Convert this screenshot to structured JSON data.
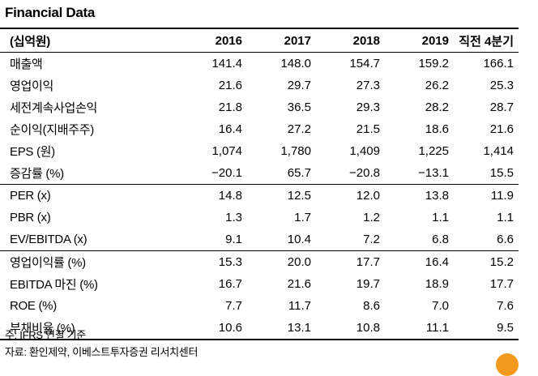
{
  "title": "Financial Data",
  "table": {
    "unit_label": "(십억원)",
    "columns": [
      "2016",
      "2017",
      "2018",
      "2019",
      "직전 4분기"
    ],
    "rows": [
      {
        "label": "매출액",
        "values": [
          "141.4",
          "148.0",
          "154.7",
          "159.2",
          "166.1"
        ]
      },
      {
        "label": "영업이익",
        "values": [
          "21.6",
          "29.7",
          "27.3",
          "26.2",
          "25.3"
        ]
      },
      {
        "label": "세전계속사업손익",
        "values": [
          "21.8",
          "36.5",
          "29.3",
          "28.2",
          "28.7"
        ]
      },
      {
        "label": "순이익(지배주주)",
        "values": [
          "16.4",
          "27.2",
          "21.5",
          "18.6",
          "21.6"
        ]
      },
      {
        "label": "EPS (원)",
        "values": [
          "1,074",
          "1,780",
          "1,409",
          "1,225",
          "1,414"
        ]
      },
      {
        "label": "증감률 (%)",
        "values": [
          "−20.1",
          "65.7",
          "−20.8",
          "−13.1",
          "15.5"
        ]
      },
      {
        "label": "PER (x)",
        "values": [
          "14.8",
          "12.5",
          "12.0",
          "13.8",
          "11.9"
        ]
      },
      {
        "label": "PBR (x)",
        "values": [
          "1.3",
          "1.7",
          "1.2",
          "1.1",
          "1.1"
        ]
      },
      {
        "label": "EV/EBITDA (x)",
        "values": [
          "9.1",
          "10.4",
          "7.2",
          "6.8",
          "6.6"
        ]
      },
      {
        "label": "영업이익률 (%)",
        "values": [
          "15.3",
          "20.0",
          "17.7",
          "16.4",
          "15.2"
        ]
      },
      {
        "label": "EBITDA 마진 (%)",
        "values": [
          "16.7",
          "21.6",
          "19.7",
          "18.9",
          "17.7"
        ]
      },
      {
        "label": "ROE (%)",
        "values": [
          "7.7",
          "11.7",
          "8.6",
          "7.0",
          "7.6"
        ]
      },
      {
        "label": "부채비율 (%)",
        "values": [
          "10.6",
          "13.1",
          "10.8",
          "11.1",
          "9.5"
        ]
      }
    ]
  },
  "notes": {
    "note": "주: IFRS 연결 기준",
    "source": "자료: 환인제약, 이베스트투자증권 리서치센터"
  }
}
